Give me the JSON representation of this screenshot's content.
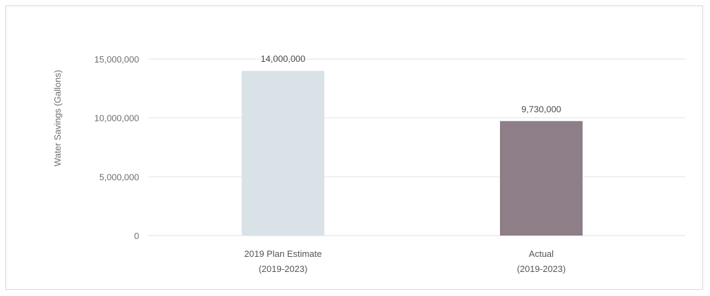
{
  "chart_data": {
    "type": "bar",
    "ylabel": "Water Savings (Gallons)",
    "ylim": [
      0,
      15000000
    ],
    "yticks": [
      0,
      5000000,
      10000000,
      15000000
    ],
    "grid": true,
    "categories": [
      [
        "2019 Plan Estimate",
        "(2019-2023)"
      ],
      [
        "Actual",
        "(2019-2023)"
      ]
    ],
    "values": [
      14000000,
      9730000
    ],
    "value_labels": [
      "14,000,000",
      "9,730,000"
    ],
    "colors": [
      "#d9e2e7",
      "#8e7e88"
    ]
  }
}
